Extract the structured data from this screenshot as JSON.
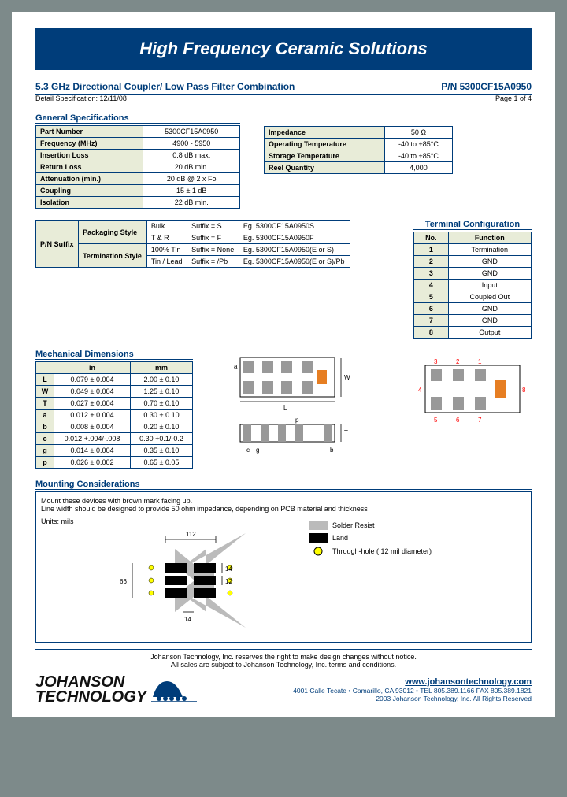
{
  "banner": "High Frequency Ceramic Solutions",
  "title": "5.3 GHz Directional Coupler/ Low Pass Filter Combination",
  "pn_label": "P/N 5300CF15A0950",
  "detail_spec": "Detail Specification:   12/11/08",
  "page_num": "Page 1 of 4",
  "gen_spec_head": "General Specifications",
  "gen_spec": [
    [
      "Part Number",
      "5300CF15A0950"
    ],
    [
      "Frequency (MHz)",
      "4900 - 5950"
    ],
    [
      "Insertion Loss",
      "0.8 dB max."
    ],
    [
      "Return Loss",
      "20 dB min."
    ],
    [
      "Attenuation (min.)",
      "20 dB @ 2 x Fo"
    ],
    [
      "Coupling",
      "15 ± 1 dB"
    ],
    [
      "Isolation",
      "22 dB min."
    ]
  ],
  "env_spec": [
    [
      "Impedance",
      "50 Ω"
    ],
    [
      "Operating Temperature",
      "-40 to +85°C"
    ],
    [
      "Storage Temperature",
      "-40 to +85°C"
    ],
    [
      "Reel Quantity",
      "4,000"
    ]
  ],
  "suffix": {
    "rowspan_label": "P/N Suffix",
    "cols": [
      "Packaging Style",
      "Termination Style"
    ],
    "rows": [
      [
        "Packaging Style",
        "Bulk",
        "Suffix = S",
        "Eg. 5300CF15A0950S"
      ],
      [
        "",
        "T & R",
        "Suffix = F",
        "Eg. 5300CF15A0950F"
      ],
      [
        "Termination Style",
        "100% Tin",
        "Suffix = None",
        "Eg. 5300CF15A0950(E or S)"
      ],
      [
        "",
        "Tin / Lead",
        "Suffix = /Pb",
        "Eg. 5300CF15A0950(E or S)/Pb"
      ]
    ]
  },
  "term_head": "Terminal Configuration",
  "term_cols": [
    "No.",
    "Function"
  ],
  "term_rows": [
    [
      "1",
      "Termination"
    ],
    [
      "2",
      "GND"
    ],
    [
      "3",
      "GND"
    ],
    [
      "4",
      "Input"
    ],
    [
      "5",
      "Coupled Out"
    ],
    [
      "6",
      "GND"
    ],
    [
      "7",
      "GND"
    ],
    [
      "8",
      "Output"
    ]
  ],
  "mech_head": "Mechanical Dimensions",
  "mech_cols": [
    "",
    "in",
    "mm"
  ],
  "mech_rows": [
    [
      "L",
      "0.079  ±  0.004",
      "2.00  ±  0.10"
    ],
    [
      "W",
      "0.049  ±  0.004",
      "1.25  ±  0.10"
    ],
    [
      "T",
      "0.027  ±  0.004",
      "0.70  ±  0.10"
    ],
    [
      "a",
      "0.012  +  0.004",
      "0.30  +  0.10"
    ],
    [
      "b",
      "0.008  ±  0.004",
      "0.20  ±  0.10"
    ],
    [
      "c",
      "0.012 +.004/-.008",
      "0.30  +0.1/-0.2"
    ],
    [
      "g",
      "0.014  ±  0.004",
      "0.35  ±  0.10"
    ],
    [
      "p",
      "0.026  ±  0.002",
      "0.65  ±  0.05"
    ]
  ],
  "mount_head": "Mounting Considerations",
  "mount_line1": "Mount these devices with brown mark facing up.",
  "mount_line2": "Line width should be designed to provide 50 ohm impedance, depending on PCB material and thickness",
  "mount_units": "Units: mils",
  "legend": {
    "solder": "Solder Resist",
    "land": "Land",
    "through": "Through-hole ( 12 mil diameter)"
  },
  "dims": {
    "d112": "112",
    "d14a": "14",
    "d12": "12",
    "d14b": "14",
    "d66": "66"
  },
  "footer1": "Johanson Technology, Inc. reserves the right to make design changes without notice.",
  "footer2": "All sales are subject to Johanson Technology, Inc. terms and conditions.",
  "logo": {
    "l1": "JOHANSON",
    "l2": "TECHNOLOGY"
  },
  "web": "www.johansontechnology.com",
  "addr": "4001 Calle Tecate • Camarillo, CA 93012 • TEL 805.389.1166 FAX 805.389.1821",
  "copy": "2003 Johanson Technology, Inc.  All Rights Reserved"
}
